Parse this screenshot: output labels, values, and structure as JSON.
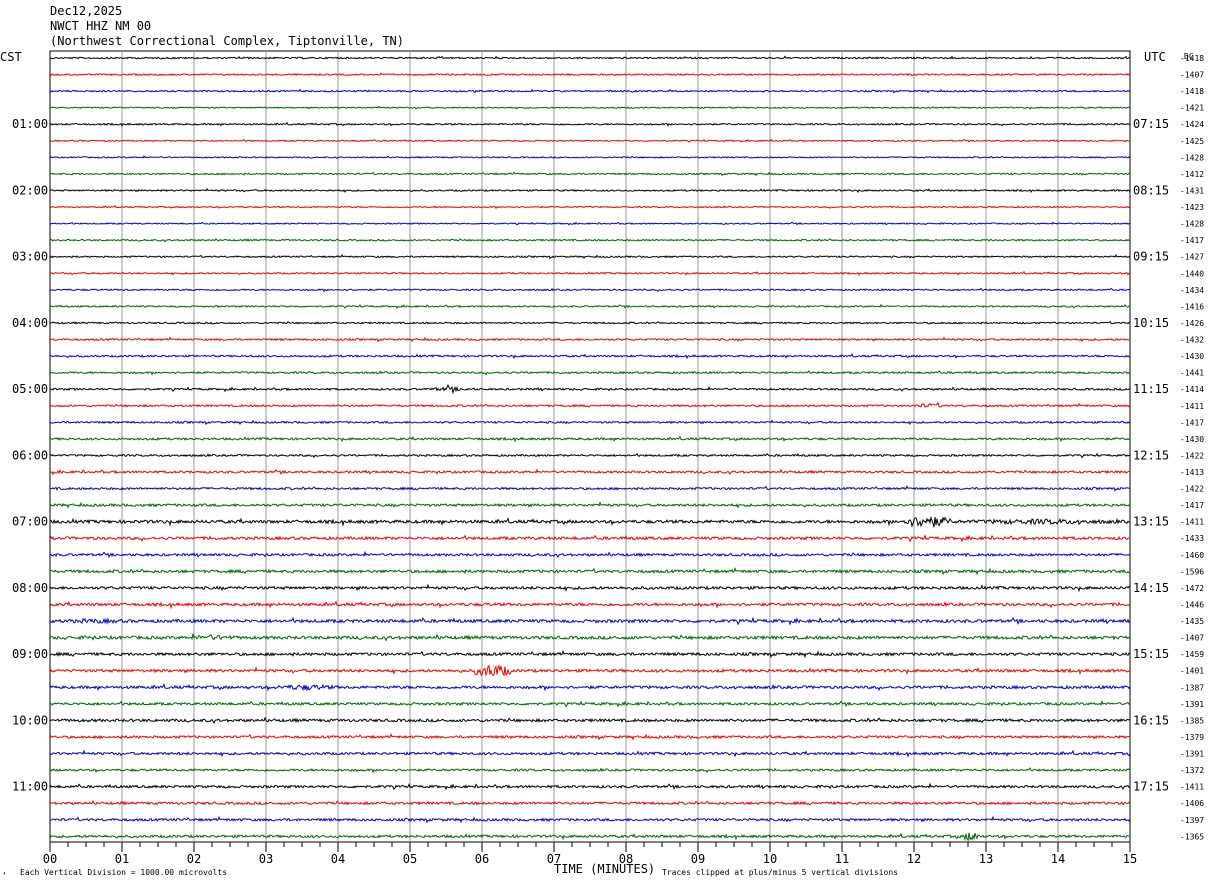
{
  "header": {
    "date": "Dec12,2025",
    "station": "NWCT HHZ NM 00",
    "location": "(Northwest Correctional Complex, Tiptonville, TN)"
  },
  "axis_labels": {
    "left_tz": "CST",
    "right_tz": "UTC",
    "dc": "DC",
    "xlabel": "TIME (MINUTES)"
  },
  "footer": {
    "scale_note": "Each Vertical Division = 1000.00 microvolts",
    "clip_note": "Traces clipped at plus/minus 5 vertical divisions",
    "corner_mark": "‘"
  },
  "colors": {
    "trace_cycle": [
      "#000000",
      "#ee0000",
      "#0000cc",
      "#006600"
    ],
    "grid": "#999999"
  },
  "chart_data": {
    "type": "line",
    "title": "Dec12,2025 NWCT HHZ NM 00",
    "xlabel": "TIME (MINUTES)",
    "ylabel": "",
    "xlim": [
      0,
      15
    ],
    "x_ticks": [
      "00",
      "01",
      "02",
      "03",
      "04",
      "05",
      "06",
      "07",
      "08",
      "09",
      "10",
      "11",
      "12",
      "13",
      "14",
      "15"
    ],
    "left_time_labels": [
      "01:00",
      "02:00",
      "03:00",
      "04:00",
      "05:00",
      "06:00",
      "07:00",
      "08:00",
      "09:00",
      "10:00",
      "11:00"
    ],
    "right_time_labels": [
      "07:15",
      "08:15",
      "09:15",
      "10:15",
      "11:15",
      "12:15",
      "13:15",
      "14:15",
      "15:15",
      "16:15",
      "17:15"
    ],
    "dc_offsets": [
      "-1418",
      "-1407",
      "-1418",
      "-1421",
      "-1424",
      "-1425",
      "-1428",
      "-1412",
      "-1431",
      "-1423",
      "-1428",
      "-1417",
      "-1427",
      "-1440",
      "-1434",
      "-1416",
      "-1426",
      "-1432",
      "-1430",
      "-1441",
      "-1414",
      "-1411",
      "-1417",
      "-1430",
      "-1422",
      "-1413",
      "-1422",
      "-1417",
      "-1411",
      "-1433",
      "-1460",
      "-1596",
      "-1472",
      "-1446",
      "-1435",
      "-1407",
      "-1459",
      "-1401",
      "-1387",
      "-1391",
      "-1385",
      "-1379",
      "-1391",
      "-1372",
      "-1411",
      "-1406",
      "-1397",
      "-1365"
    ],
    "trace_amplitude": [
      0.25,
      0.25,
      0.25,
      0.2,
      0.25,
      0.2,
      0.2,
      0.25,
      0.25,
      0.2,
      0.2,
      0.25,
      0.25,
      0.25,
      0.25,
      0.25,
      0.25,
      0.3,
      0.3,
      0.3,
      0.3,
      0.3,
      0.3,
      0.35,
      0.3,
      0.35,
      0.35,
      0.4,
      0.5,
      0.45,
      0.4,
      0.45,
      0.45,
      0.45,
      0.5,
      0.5,
      0.45,
      0.45,
      0.45,
      0.4,
      0.45,
      0.4,
      0.4,
      0.35,
      0.4,
      0.4,
      0.4,
      0.4
    ],
    "events": [
      {
        "trace": 28,
        "start_min": 11.85,
        "end_min": 12.5,
        "amp": 2.2
      },
      {
        "trace": 28,
        "start_min": 12.5,
        "end_min": 15,
        "amp": 0.9
      },
      {
        "trace": 37,
        "start_min": 5.9,
        "end_min": 6.4,
        "amp": 2.3
      },
      {
        "trace": 38,
        "start_min": 3.1,
        "end_min": 4.0,
        "amp": 1.0
      },
      {
        "trace": 35,
        "start_min": 1.9,
        "end_min": 2.6,
        "amp": 1.0
      },
      {
        "trace": 47,
        "start_min": 12.7,
        "end_min": 12.9,
        "amp": 2.0
      },
      {
        "trace": 20,
        "start_min": 5.2,
        "end_min": 5.9,
        "amp": 0.7
      },
      {
        "trace": 21,
        "start_min": 12.0,
        "end_min": 12.4,
        "amp": 0.8
      },
      {
        "trace": 34,
        "start_min": 0.0,
        "end_min": 1.2,
        "amp": 0.8
      }
    ]
  }
}
